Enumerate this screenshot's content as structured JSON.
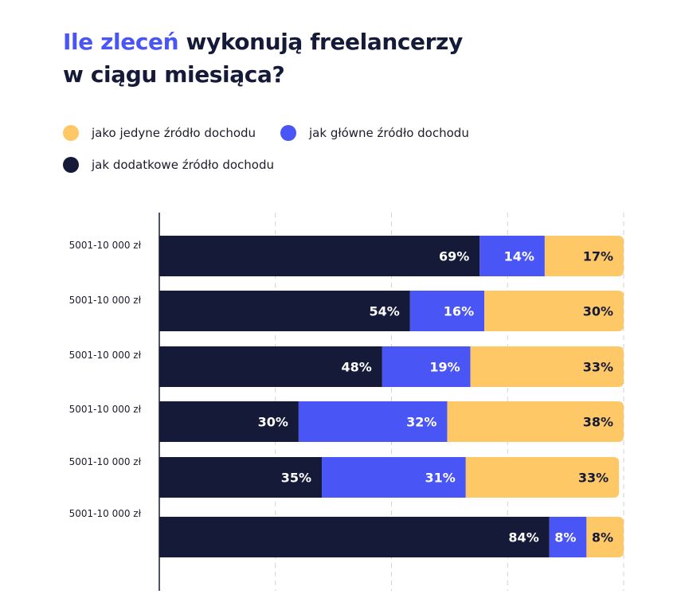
{
  "title": {
    "accent": "Ile zleceń",
    "line1_rest": " wykonują freelancerzy",
    "line2": "w ciągu miesiąca?"
  },
  "legend": [
    {
      "label": "jako jedyne źródło dochodu",
      "color": "#fec867"
    },
    {
      "label": "jak główne źródło dochodu",
      "color": "#4a55f5"
    },
    {
      "label": "jak dodatkowe źródło dochodu",
      "color": "#141a38"
    }
  ],
  "colors": {
    "accent": "#4a55f5",
    "dark": "#141a38",
    "blue": "#4a55f5",
    "yellow": "#fec867",
    "grid": "#d2d2d2"
  },
  "chart_data": {
    "type": "bar",
    "orientation": "horizontal",
    "stacked": true,
    "categories": [
      "5001-10 000 zł",
      "5001-10 000 zł",
      "5001-10 000 zł",
      "5001-10 000 zł",
      "5001-10 000 zł",
      "5001-10 000 zł"
    ],
    "series": [
      {
        "name": "jak dodatkowe źródło dochodu",
        "values": [
          69,
          54,
          48,
          30,
          35,
          84
        ],
        "labels": [
          "69%",
          "54%",
          "48%",
          "30%",
          "35%",
          "84%"
        ],
        "color": "#141a38"
      },
      {
        "name": "jak główne źródło dochodu",
        "values": [
          14,
          16,
          19,
          32,
          31,
          8
        ],
        "labels": [
          "14%",
          "16%",
          "19%",
          "32%",
          "31%",
          "8%"
        ],
        "color": "#4a55f5"
      },
      {
        "name": "jako jedyne źródło dochodu",
        "values": [
          17,
          30,
          33,
          38,
          33,
          8
        ],
        "labels": [
          "17%",
          "30%",
          "33%",
          "38%",
          "33%",
          "8%"
        ],
        "color": "#fec867"
      }
    ],
    "xlim": [
      0,
      100
    ],
    "grid": true,
    "legend_position": "top-left"
  }
}
